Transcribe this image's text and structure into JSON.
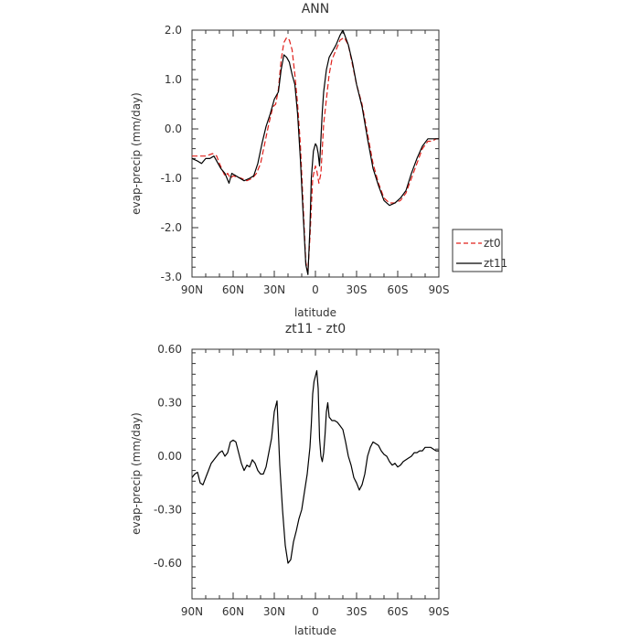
{
  "colors": {
    "zt0": "#e0201b",
    "zt11": "#000000",
    "axis": "#333333"
  },
  "chart_data": [
    {
      "type": "line",
      "title": "ANN",
      "xlabel": "latitude",
      "ylabel": "evap-precip (mm/day)",
      "xlim": [
        90,
        -90
      ],
      "ylim": [
        -3.0,
        2.0
      ],
      "x_ticks": [
        90,
        60,
        30,
        0,
        -30,
        -60,
        -90
      ],
      "x_tick_labels": [
        "90N",
        "60N",
        "30N",
        "0",
        "30S",
        "60S",
        "90S"
      ],
      "y_ticks": [
        -3.0,
        -2.0,
        -1.0,
        0.0,
        1.0,
        2.0
      ],
      "y_tick_labels": [
        "-3.0",
        "-2.0",
        "-1.0",
        "0.0",
        "1.0",
        "2.0"
      ],
      "legend": {
        "position": "right",
        "entries": [
          "zt0",
          "zt11"
        ]
      },
      "series": [
        {
          "name": "zt0",
          "style": "dashed",
          "x": [
            90,
            85,
            80,
            75,
            72,
            70,
            66,
            64,
            62,
            60,
            57,
            54,
            50,
            46,
            43,
            40,
            37,
            34,
            31,
            29,
            27,
            25,
            23,
            21,
            19,
            17,
            15,
            13,
            11,
            9,
            7,
            5.5,
            4,
            2,
            0,
            -1,
            -2.5,
            -4,
            -5,
            -6,
            -8,
            -10,
            -12,
            -15,
            -18,
            -21,
            -24,
            -27,
            -30,
            -34,
            -38,
            -42,
            -46,
            -50,
            -54,
            -58,
            -62,
            -66,
            -70,
            -74,
            -78,
            -82,
            -85,
            -88,
            -90
          ],
          "y": [
            -0.55,
            -0.55,
            -0.55,
            -0.5,
            -0.55,
            -0.7,
            -0.95,
            -0.9,
            -1.0,
            -0.95,
            -0.98,
            -1.0,
            -1.05,
            -1.0,
            -0.9,
            -0.7,
            -0.3,
            0.1,
            0.45,
            0.5,
            0.8,
            1.4,
            1.75,
            1.85,
            1.8,
            1.6,
            1.1,
            0.5,
            -0.3,
            -1.5,
            -2.7,
            -2.9,
            -2.2,
            -1.0,
            -0.75,
            -0.85,
            -1.1,
            -0.9,
            -0.4,
            0.1,
            0.6,
            1.1,
            1.4,
            1.6,
            1.8,
            1.85,
            1.7,
            1.3,
            0.9,
            0.5,
            -0.1,
            -0.7,
            -1.1,
            -1.4,
            -1.5,
            -1.5,
            -1.45,
            -1.3,
            -1.0,
            -0.7,
            -0.4,
            -0.25,
            -0.25,
            -0.2,
            -0.2
          ]
        },
        {
          "name": "zt11",
          "style": "solid",
          "x": [
            90,
            86,
            83,
            80,
            77,
            74,
            71,
            69,
            66,
            63,
            61,
            58,
            55,
            52,
            48,
            45,
            42,
            39,
            36,
            33,
            30,
            27,
            25,
            23,
            21,
            19,
            17,
            15,
            13,
            11,
            9,
            7,
            5.5,
            4,
            3,
            1.5,
            0,
            -1,
            -2,
            -3,
            -4,
            -5,
            -6,
            -8,
            -10,
            -12,
            -15,
            -18,
            -20,
            -22,
            -24,
            -27,
            -30,
            -34,
            -38,
            -42,
            -46,
            -50,
            -54,
            -58,
            -62,
            -66,
            -70,
            -74,
            -78,
            -82,
            -86,
            -90
          ],
          "y": [
            -0.6,
            -0.65,
            -0.7,
            -0.6,
            -0.6,
            -0.55,
            -0.7,
            -0.8,
            -0.9,
            -1.1,
            -0.9,
            -0.95,
            -1.0,
            -1.05,
            -1.0,
            -0.95,
            -0.7,
            -0.3,
            0.05,
            0.3,
            0.6,
            0.75,
            1.2,
            1.5,
            1.45,
            1.35,
            1.1,
            0.9,
            0.3,
            -0.6,
            -1.7,
            -2.75,
            -2.95,
            -2.0,
            -1.0,
            -0.45,
            -0.3,
            -0.35,
            -0.5,
            -0.75,
            -0.2,
            0.35,
            0.75,
            1.2,
            1.45,
            1.55,
            1.7,
            1.9,
            2.0,
            1.85,
            1.7,
            1.35,
            0.9,
            0.45,
            -0.2,
            -0.8,
            -1.15,
            -1.45,
            -1.55,
            -1.5,
            -1.4,
            -1.25,
            -0.9,
            -0.6,
            -0.35,
            -0.2,
            -0.2,
            -0.2
          ]
        }
      ]
    },
    {
      "type": "line",
      "title": "zt11 - zt0",
      "xlabel": "latitude",
      "ylabel": "evap-precip (mm/day)",
      "xlim": [
        90,
        -90
      ],
      "ylim": [
        -0.8,
        0.6
      ],
      "x_ticks": [
        90,
        60,
        30,
        0,
        -30,
        -60,
        -90
      ],
      "x_tick_labels": [
        "90N",
        "60N",
        "30N",
        "0",
        "30S",
        "60S",
        "90S"
      ],
      "y_ticks": [
        -0.6,
        -0.3,
        0.0,
        0.3,
        0.6
      ],
      "y_tick_labels": [
        "-0.60",
        "-0.30",
        "0.00",
        "0.30",
        "0.60"
      ],
      "series": [
        {
          "style": "solid",
          "x": [
            90,
            88,
            86,
            84,
            82,
            80,
            78,
            76,
            74,
            72,
            70,
            68,
            66,
            64,
            62,
            60,
            58,
            56,
            54,
            52,
            50,
            48,
            46,
            44,
            42,
            40,
            38,
            36,
            34,
            32,
            30,
            28,
            26,
            24,
            22,
            20,
            18,
            16,
            14,
            12,
            10,
            8,
            6,
            4,
            3,
            2,
            1,
            0,
            -1,
            -2,
            -3,
            -4,
            -5,
            -6,
            -7,
            -8,
            -9,
            -10,
            -12,
            -14,
            -16,
            -18,
            -20,
            -22,
            -24,
            -26,
            -28,
            -30,
            -32,
            -34,
            -36,
            -38,
            -40,
            -42,
            -44,
            -46,
            -48,
            -50,
            -52,
            -54,
            -56,
            -58,
            -60,
            -62,
            -64,
            -66,
            -68,
            -70,
            -72,
            -74,
            -76,
            -78,
            -80,
            -82,
            -84,
            -86,
            -88,
            -90
          ],
          "y": [
            -0.12,
            -0.1,
            -0.09,
            -0.15,
            -0.16,
            -0.12,
            -0.08,
            -0.04,
            -0.02,
            0.0,
            0.02,
            0.03,
            0.0,
            0.02,
            0.08,
            0.09,
            0.08,
            0.02,
            -0.04,
            -0.08,
            -0.05,
            -0.06,
            -0.02,
            -0.04,
            -0.08,
            -0.1,
            -0.1,
            -0.06,
            0.02,
            0.1,
            0.25,
            0.31,
            -0.05,
            -0.3,
            -0.5,
            -0.6,
            -0.58,
            -0.48,
            -0.42,
            -0.35,
            -0.3,
            -0.2,
            -0.1,
            0.05,
            0.18,
            0.35,
            0.42,
            0.45,
            0.48,
            0.38,
            0.1,
            0.0,
            -0.03,
            0.02,
            0.12,
            0.25,
            0.3,
            0.22,
            0.2,
            0.2,
            0.19,
            0.17,
            0.15,
            0.08,
            0.0,
            -0.05,
            -0.12,
            -0.15,
            -0.19,
            -0.16,
            -0.1,
            0.0,
            0.05,
            0.08,
            0.07,
            0.06,
            0.03,
            0.01,
            0.0,
            -0.03,
            -0.05,
            -0.04,
            -0.06,
            -0.05,
            -0.03,
            -0.02,
            -0.01,
            0.0,
            0.02,
            0.02,
            0.03,
            0.03,
            0.05,
            0.05,
            0.05,
            0.04,
            0.03,
            0.03
          ]
        }
      ]
    }
  ]
}
